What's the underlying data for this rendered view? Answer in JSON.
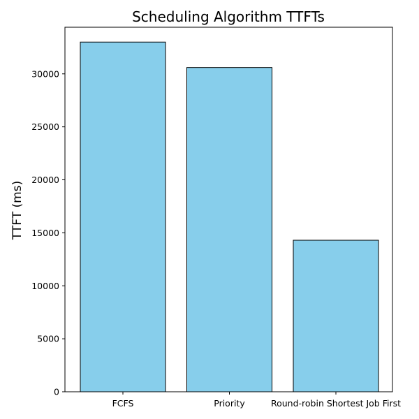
{
  "chart_data": {
    "type": "bar",
    "title": "Scheduling Algorithm TTFTs",
    "xlabel": "",
    "ylabel": "TTFT (ms)",
    "categories": [
      "FCFS",
      "Priority",
      "Round-robin Shortest Job First"
    ],
    "values": [
      33000,
      30600,
      14300
    ],
    "ylim": [
      0,
      34400
    ],
    "yticks": [
      0,
      5000,
      10000,
      15000,
      20000,
      25000,
      30000
    ],
    "ytick_labels": [
      "0",
      "5000",
      "10000",
      "15000",
      "20000",
      "25000",
      "30000"
    ],
    "grid": false,
    "legend": "none",
    "colors": {
      "bar_fill": "#87CEEB",
      "bar_edge": "#000000"
    }
  }
}
